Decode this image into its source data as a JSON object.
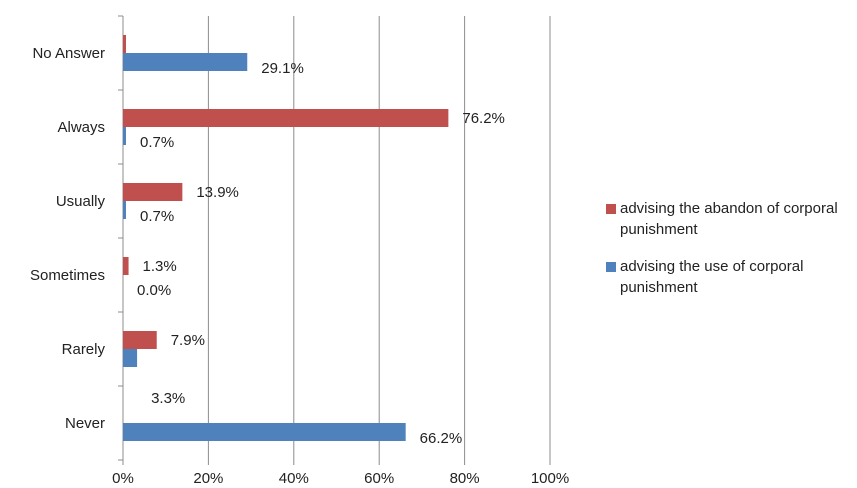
{
  "chart_data": {
    "type": "bar",
    "orientation": "horizontal",
    "categories": [
      "No Answer",
      "Always",
      "Usually",
      "Sometimes",
      "Rarely",
      "Never"
    ],
    "series": [
      {
        "name": "advising  the abandon of corporal punishment",
        "color": "#C0504D",
        "values": [
          0.7,
          76.2,
          13.9,
          1.3,
          7.9,
          0.0
        ],
        "labels": [
          "",
          "76.2%",
          "13.9%",
          "1.3%",
          "7.9%",
          ""
        ]
      },
      {
        "name": "advising the use of  corporal punishment",
        "color": "#4F81BD",
        "values": [
          29.1,
          0.7,
          0.7,
          0.0,
          3.3,
          66.2
        ],
        "labels": [
          "29.1%",
          "0.7%",
          "0.7%",
          "0.0%",
          "3.3%",
          "66.2%"
        ]
      }
    ],
    "xlim": [
      0,
      100
    ],
    "xticks": [
      "0%",
      "20%",
      "40%",
      "60%",
      "80%",
      "100%"
    ],
    "grid": true,
    "legend_position": "right",
    "title": "",
    "xlabel": "",
    "ylabel": ""
  }
}
